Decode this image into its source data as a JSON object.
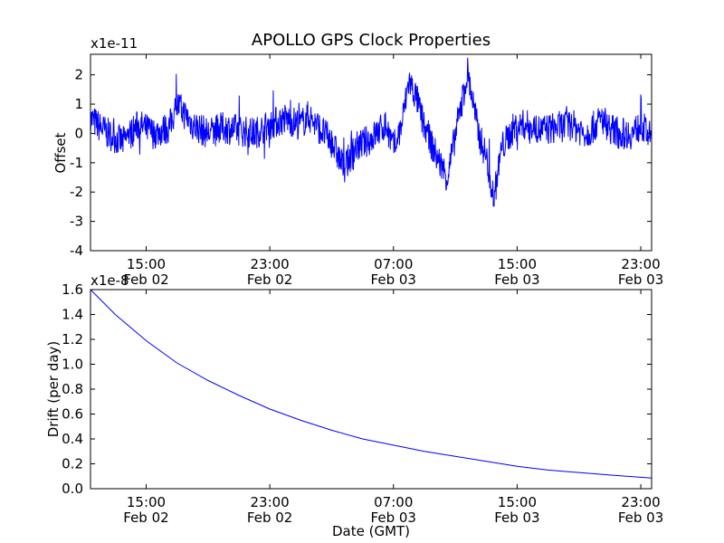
{
  "title": "APOLLO GPS Clock Properties",
  "chart_data": [
    {
      "type": "line",
      "name": "offset",
      "ylabel": "Offset",
      "xlabel": "",
      "multiplier": "x1e-11",
      "ylim": [
        -4,
        2.7
      ],
      "yticks": [
        -4,
        -3,
        -2,
        -1,
        0,
        1,
        2
      ],
      "ytick_labels": [
        "-4",
        "-3",
        "-2",
        "-1",
        "0",
        "1",
        "2"
      ],
      "xlim_hours": [
        11.4,
        47.7
      ],
      "xticks_hours": [
        15,
        23,
        31,
        39,
        47
      ],
      "xtick_labels": [
        {
          "time": "15:00",
          "date": "Feb 02"
        },
        {
          "time": "23:00",
          "date": "Feb 02"
        },
        {
          "time": "07:00",
          "date": "Feb 03"
        },
        {
          "time": "15:00",
          "date": "Feb 03"
        },
        {
          "time": "23:00",
          "date": "Feb 03"
        }
      ],
      "line_color": "#0000ff",
      "series_hours": [
        11.4,
        12.5,
        13.5,
        14.5,
        15.5,
        16.5,
        17.0,
        18.0,
        19.0,
        20.0,
        21.0,
        22.0,
        23.0,
        24.0,
        25.0,
        25.5,
        26.5,
        27.0,
        27.8,
        28.5,
        29.5,
        30.5,
        31.0,
        31.5,
        32.0,
        32.5,
        33.0,
        33.8,
        34.5,
        35.2,
        35.8,
        36.5,
        37.0,
        37.5,
        38.0,
        38.8,
        39.5,
        40.5,
        41.5,
        42.5,
        43.5,
        44.5,
        45.0,
        45.5,
        46.5,
        47.0,
        47.7
      ],
      "series_values": [
        0.5,
        0.0,
        -0.3,
        0.3,
        0.0,
        0.2,
        1.0,
        0.3,
        0.0,
        0.2,
        0.1,
        0.0,
        0.3,
        0.5,
        0.3,
        0.6,
        0.0,
        -0.3,
        -1.2,
        -0.5,
        -0.2,
        0.3,
        -0.5,
        0.2,
        1.8,
        1.2,
        0.2,
        -0.8,
        -1.5,
        0.5,
        2.1,
        0.0,
        -0.8,
        -2.2,
        -0.5,
        0.2,
        0.3,
        0.1,
        0.2,
        0.3,
        0.0,
        0.5,
        0.2,
        0.0,
        0.0,
        0.3,
        -0.2
      ]
    },
    {
      "type": "line",
      "name": "drift",
      "ylabel": "Drift (per day)",
      "xlabel": "Date (GMT)",
      "multiplier": "x1e-8",
      "ylim": [
        0.0,
        1.6
      ],
      "yticks": [
        0.0,
        0.2,
        0.4,
        0.6,
        0.8,
        1.0,
        1.2,
        1.4,
        1.6
      ],
      "ytick_labels": [
        "0.0",
        "0.2",
        "0.4",
        "0.6",
        "0.8",
        "1.0",
        "1.2",
        "1.4",
        "1.6"
      ],
      "xlim_hours": [
        11.4,
        47.7
      ],
      "xticks_hours": [
        15,
        23,
        31,
        39,
        47
      ],
      "xtick_labels": [
        {
          "time": "15:00",
          "date": "Feb 02"
        },
        {
          "time": "23:00",
          "date": "Feb 02"
        },
        {
          "time": "07:00",
          "date": "Feb 03"
        },
        {
          "time": "15:00",
          "date": "Feb 03"
        },
        {
          "time": "23:00",
          "date": "Feb 03"
        }
      ],
      "line_color": "#0000ff",
      "series_hours": [
        11.4,
        13,
        15,
        17,
        19,
        21,
        23,
        25,
        27,
        29,
        31,
        33,
        35,
        37,
        39,
        41,
        43,
        45,
        47.7
      ],
      "series_values": [
        1.6,
        1.4,
        1.19,
        1.01,
        0.87,
        0.75,
        0.64,
        0.55,
        0.47,
        0.4,
        0.35,
        0.3,
        0.26,
        0.22,
        0.18,
        0.15,
        0.13,
        0.11,
        0.085
      ]
    }
  ]
}
